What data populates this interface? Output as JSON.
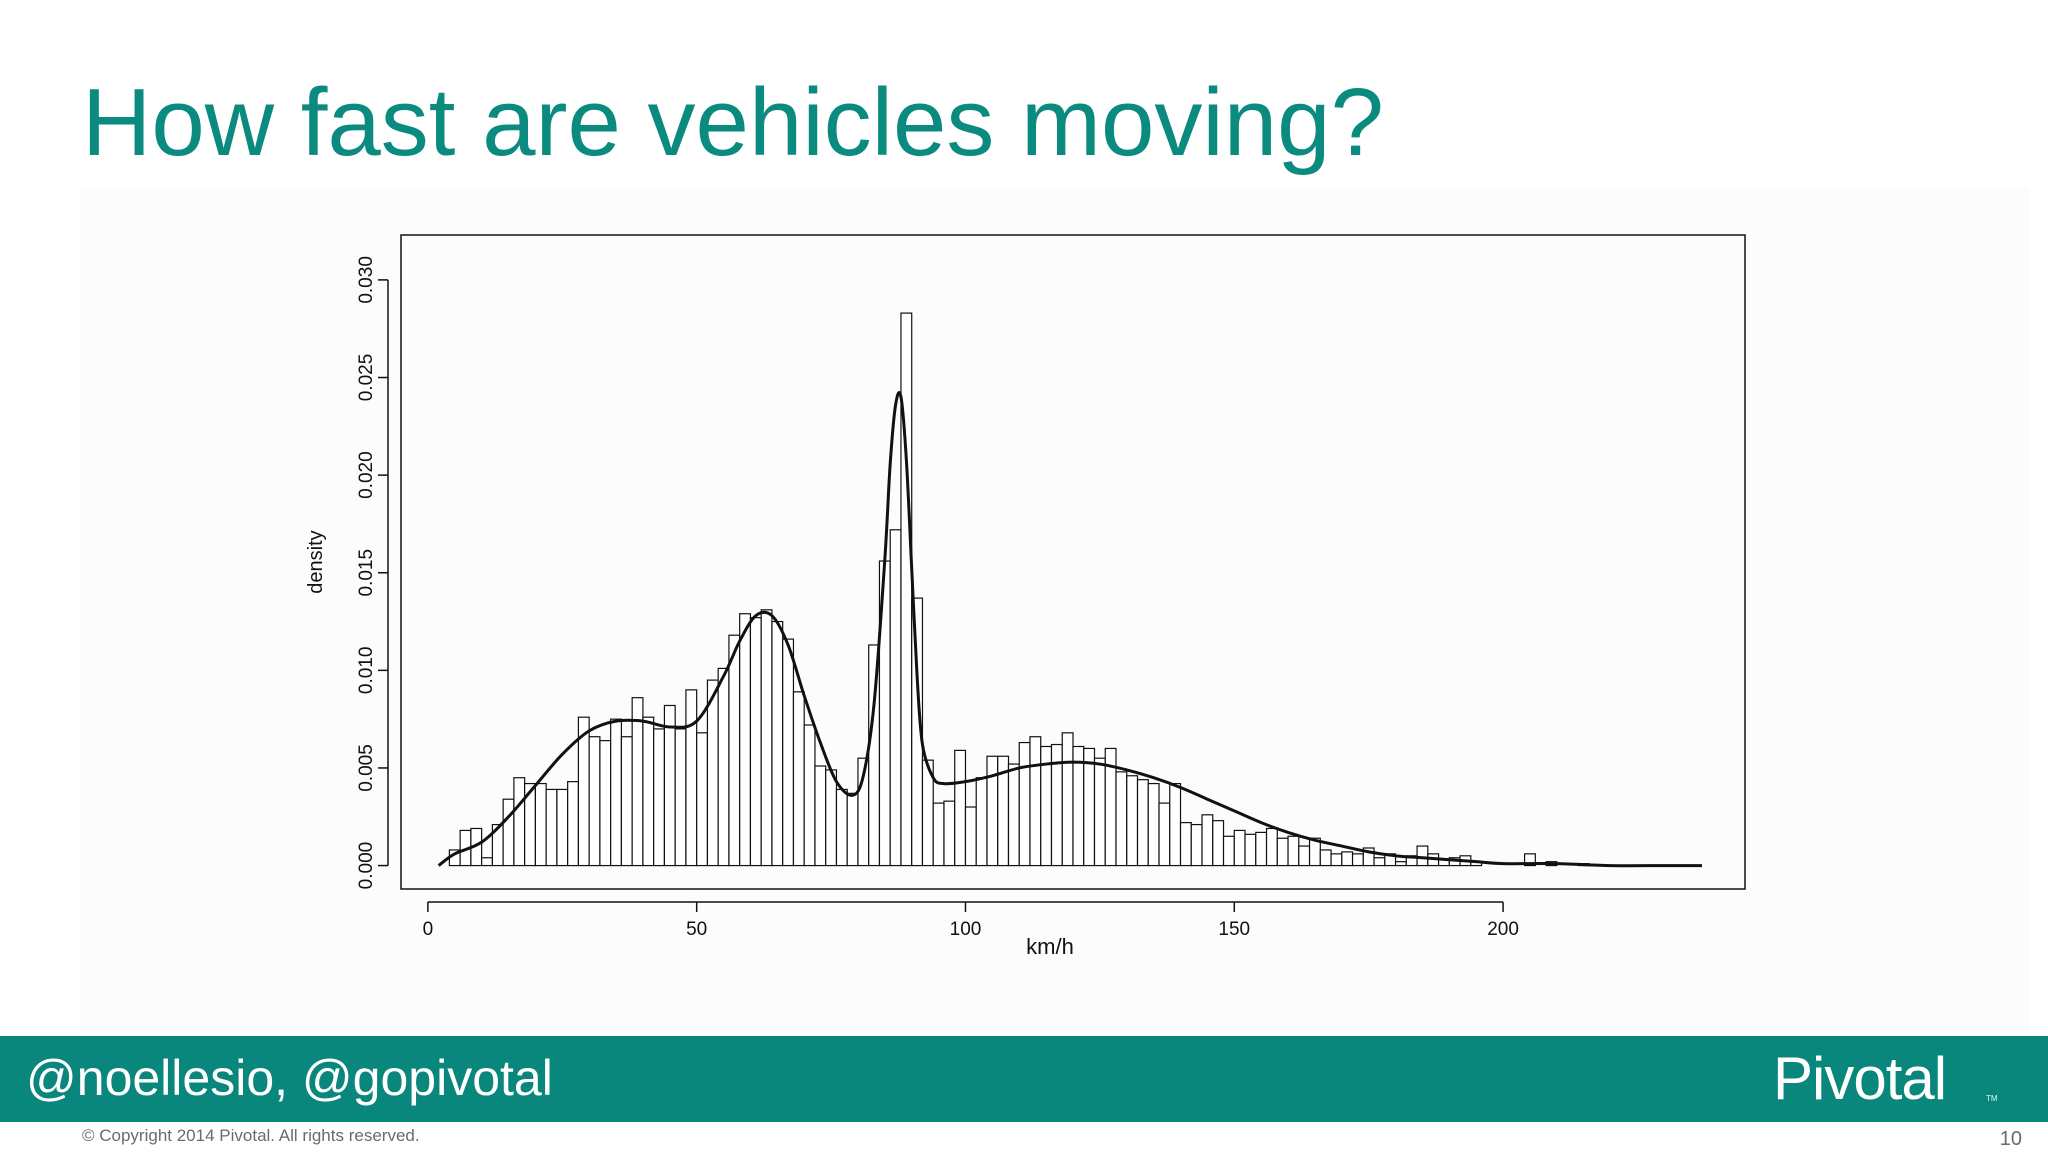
{
  "slide": {
    "title": "How fast are vehicles moving?",
    "footer_handle": "@noellesio, @gopivotal",
    "logo_text": "Pivotal",
    "logo_mark": "TM",
    "copyright": "© Copyright 2014 Pivotal. All rights reserved.",
    "page_number": "10",
    "accent_color": "#0a877d"
  },
  "chart_data": {
    "type": "bar",
    "subtype": "histogram-with-density-curve",
    "title": "",
    "xlabel": "km/h",
    "ylabel": "density",
    "xlim": [
      -5,
      245
    ],
    "ylim": [
      -0.0012,
      0.0323
    ],
    "x_ticks": [
      0,
      50,
      100,
      150,
      200
    ],
    "x_tick_labels": [
      "0",
      "50",
      "100",
      "150",
      "200"
    ],
    "y_ticks": [
      0.0,
      0.005,
      0.01,
      0.015,
      0.02,
      0.025,
      0.03
    ],
    "y_tick_labels": [
      "0.000",
      "0.005",
      "0.010",
      "0.015",
      "0.020",
      "0.025",
      "0.030"
    ],
    "grid": false,
    "legend": "none",
    "bin_width": 2,
    "bin_start": 4,
    "histogram": [
      0.0008,
      0.0018,
      0.0019,
      0.0004,
      0.0021,
      0.0034,
      0.0045,
      0.0042,
      0.0042,
      0.0039,
      0.0039,
      0.0043,
      0.0076,
      0.0066,
      0.0064,
      0.0075,
      0.0066,
      0.0086,
      0.0076,
      0.007,
      0.0082,
      0.007,
      0.009,
      0.0068,
      0.0095,
      0.0101,
      0.0118,
      0.0129,
      0.0127,
      0.0131,
      0.0125,
      0.0116,
      0.0089,
      0.0072,
      0.0051,
      0.0049,
      0.0039,
      0.0037,
      0.0055,
      0.0113,
      0.0156,
      0.0172,
      0.0283,
      0.0137,
      0.0054,
      0.0032,
      0.0033,
      0.0059,
      0.003,
      0.0045,
      0.0056,
      0.0056,
      0.0052,
      0.0063,
      0.0066,
      0.0061,
      0.0062,
      0.0068,
      0.0061,
      0.006,
      0.0055,
      0.006,
      0.0048,
      0.0046,
      0.0044,
      0.0042,
      0.0032,
      0.0042,
      0.0022,
      0.0021,
      0.0026,
      0.0023,
      0.0015,
      0.0018,
      0.0016,
      0.0017,
      0.0019,
      0.0014,
      0.0015,
      0.001,
      0.0014,
      0.0008,
      0.0006,
      0.0007,
      0.0006,
      0.0009,
      0.0004,
      0.0006,
      0.0002,
      0.0005,
      0.001,
      0.0006,
      0.0003,
      0.0004,
      0.0005,
      0.0002,
      0.0,
      0.0,
      0.0,
      0.0,
      0.0006,
      0.0,
      0.0002,
      0.0,
      0.0,
      0.0001
    ],
    "density_curve": {
      "x": [
        2,
        5,
        10,
        15,
        20,
        25,
        30,
        35,
        40,
        45,
        50,
        55,
        58,
        61,
        64,
        67,
        70,
        73,
        76,
        79,
        81,
        83,
        85,
        86,
        87,
        88,
        89,
        90,
        91,
        92,
        94,
        96,
        100,
        105,
        110,
        115,
        120,
        125,
        130,
        135,
        140,
        145,
        150,
        155,
        160,
        165,
        170,
        175,
        180,
        185,
        190,
        195,
        200,
        210,
        220,
        230,
        237
      ],
      "y": [
        0.0,
        0.0006,
        0.0012,
        0.0025,
        0.0041,
        0.0057,
        0.0069,
        0.0074,
        0.0074,
        0.0071,
        0.0074,
        0.0097,
        0.0115,
        0.0128,
        0.0128,
        0.0113,
        0.0087,
        0.0063,
        0.0043,
        0.0036,
        0.0046,
        0.0083,
        0.0157,
        0.0206,
        0.0236,
        0.024,
        0.0208,
        0.0152,
        0.0097,
        0.0062,
        0.0045,
        0.0042,
        0.0043,
        0.0046,
        0.005,
        0.0052,
        0.0053,
        0.0052,
        0.0049,
        0.0045,
        0.004,
        0.0034,
        0.0028,
        0.0022,
        0.0017,
        0.0013,
        0.001,
        0.0007,
        0.0005,
        0.0004,
        0.0003,
        0.0002,
        0.0001,
        0.0001,
        0.0,
        0.0,
        0.0
      ]
    }
  }
}
